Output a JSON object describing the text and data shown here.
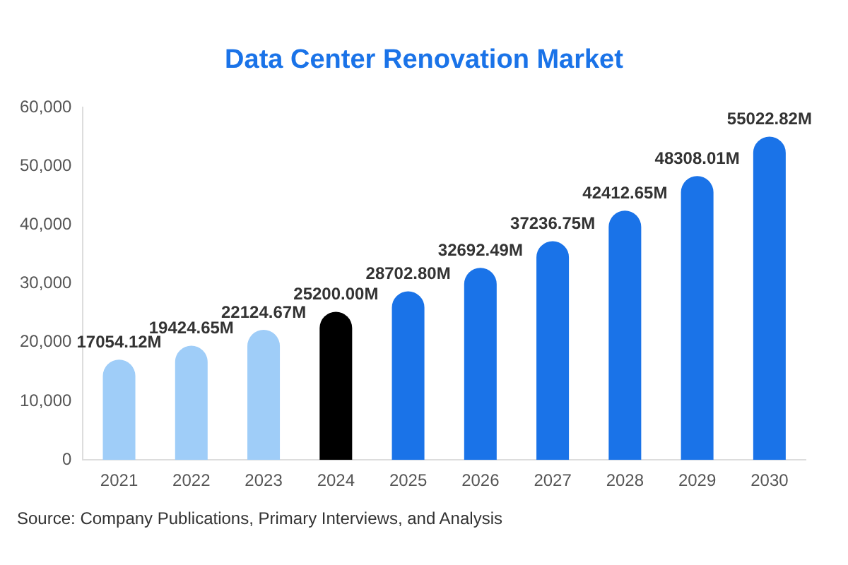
{
  "chart_data": {
    "type": "bar",
    "title": "Data Center Renovation Market",
    "categories": [
      "2021",
      "2022",
      "2023",
      "2024",
      "2025",
      "2026",
      "2027",
      "2028",
      "2029",
      "2030"
    ],
    "values": [
      17054.12,
      19424.65,
      22124.67,
      25200.0,
      28702.8,
      32692.49,
      37236.75,
      42412.65,
      48308.01,
      55022.82
    ],
    "colors": [
      "#9fcdf8",
      "#9fcdf8",
      "#9fcdf8",
      "#000000",
      "#1a73e8",
      "#1a73e8",
      "#1a73e8",
      "#1a73e8",
      "#1a73e8",
      "#1a73e8"
    ],
    "value_labels": [
      "17054.12M",
      "19424.65M",
      "22124.67M",
      "25200.00M",
      "28702.80M",
      "32692.49M",
      "37236.75M",
      "42412.65M",
      "48308.01M",
      "55022.82M"
    ],
    "ylim": [
      0,
      60000
    ],
    "yticks": [
      0,
      {
        "value": 10000,
        "label": "10,000"
      },
      {
        "value": 20000,
        "label": "20,000"
      },
      {
        "value": 30000,
        "label": "30,000"
      },
      {
        "value": 40000,
        "label": "40,000"
      },
      {
        "value": 50000,
        "label": "50,000"
      },
      {
        "value": 60000,
        "label": "60,000"
      }
    ],
    "grid": false,
    "legend": false,
    "annotations": [
      "Source: Company Publications, Primary Interviews, and Analysis"
    ]
  }
}
